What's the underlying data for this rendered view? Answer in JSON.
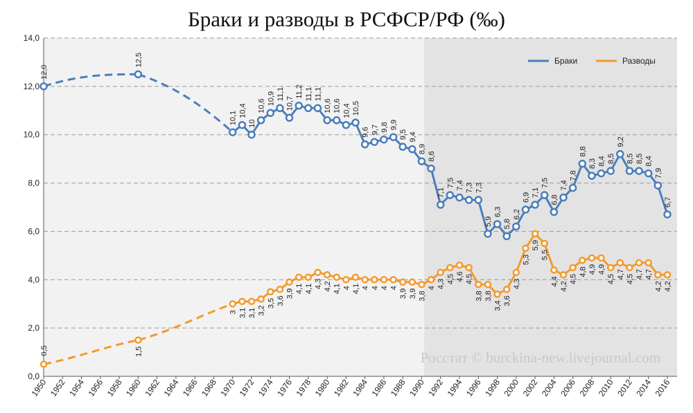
{
  "chart_data": {
    "type": "line",
    "title": "Браки и разводы в РСФСР/РФ (‰)",
    "watermark": "Росстат © burckina-new.livejournal.com",
    "xlim": [
      1950,
      2016
    ],
    "ylim": [
      0,
      14
    ],
    "y_ticks": [
      "0,0",
      "2,0",
      "4,0",
      "6,0",
      "8,0",
      "10,0",
      "12,0",
      "14,0"
    ],
    "x_ticks": [
      "1950",
      "1952",
      "1954",
      "1956",
      "1958",
      "1960",
      "1962",
      "1964",
      "1966",
      "1968",
      "1970",
      "1972",
      "1974",
      "1976",
      "1978",
      "1980",
      "1982",
      "1984",
      "1986",
      "1988",
      "1990",
      "1992",
      "1994",
      "1996",
      "1998",
      "2000",
      "2002",
      "2004",
      "2006",
      "2008",
      "2010",
      "2012",
      "2014",
      "2016"
    ],
    "shaded_from": 1991,
    "grid": "horizontal dashed",
    "legend_position": "top-right",
    "series": [
      {
        "name": "Браки",
        "color": "#4a7ebb",
        "marker": "circle",
        "dashed_segments": [
          [
            1950,
            1960
          ],
          [
            1960,
            1970
          ]
        ],
        "points": [
          {
            "x": 1950,
            "y": 12.0,
            "label": "12,0"
          },
          {
            "x": 1960,
            "y": 12.5,
            "label": "12,5"
          },
          {
            "x": 1970,
            "y": 10.1,
            "label": "10,1"
          },
          {
            "x": 1971,
            "y": 10.4,
            "label": "10,4"
          },
          {
            "x": 1972,
            "y": 10.0,
            "label": "10"
          },
          {
            "x": 1973,
            "y": 10.6,
            "label": "10,6"
          },
          {
            "x": 1974,
            "y": 10.9,
            "label": "10,9"
          },
          {
            "x": 1975,
            "y": 11.1,
            "label": "11,1"
          },
          {
            "x": 1976,
            "y": 10.7,
            "label": "10,7"
          },
          {
            "x": 1977,
            "y": 11.2,
            "label": "11,2"
          },
          {
            "x": 1978,
            "y": 11.1,
            "label": "11,1"
          },
          {
            "x": 1979,
            "y": 11.1,
            "label": "11,1"
          },
          {
            "x": 1980,
            "y": 10.6,
            "label": "10,6"
          },
          {
            "x": 1981,
            "y": 10.6,
            "label": "10,6"
          },
          {
            "x": 1982,
            "y": 10.4,
            "label": "10,4"
          },
          {
            "x": 1983,
            "y": 10.5,
            "label": "10,5"
          },
          {
            "x": 1984,
            "y": 9.6,
            "label": "9,6"
          },
          {
            "x": 1985,
            "y": 9.7,
            "label": "9,7"
          },
          {
            "x": 1986,
            "y": 9.8,
            "label": "9,8"
          },
          {
            "x": 1987,
            "y": 9.9,
            "label": "9,9"
          },
          {
            "x": 1988,
            "y": 9.5,
            "label": "9,5"
          },
          {
            "x": 1989,
            "y": 9.4,
            "label": "9,4"
          },
          {
            "x": 1990,
            "y": 8.9,
            "label": "8,9"
          },
          {
            "x": 1991,
            "y": 8.6,
            "label": "8,6"
          },
          {
            "x": 1992,
            "y": 7.1,
            "label": "7,1"
          },
          {
            "x": 1993,
            "y": 7.5,
            "label": "7,5"
          },
          {
            "x": 1994,
            "y": 7.4,
            "label": "7,4"
          },
          {
            "x": 1995,
            "y": 7.3,
            "label": "7,3"
          },
          {
            "x": 1996,
            "y": 7.3,
            "label": "7,3"
          },
          {
            "x": 1997,
            "y": 5.9,
            "label": "5,9"
          },
          {
            "x": 1998,
            "y": 6.3,
            "label": "6,3"
          },
          {
            "x": 1999,
            "y": 5.8,
            "label": "5,8"
          },
          {
            "x": 2000,
            "y": 6.2,
            "label": "6,2"
          },
          {
            "x": 2001,
            "y": 6.9,
            "label": "6,9"
          },
          {
            "x": 2002,
            "y": 7.1,
            "label": "7,1"
          },
          {
            "x": 2003,
            "y": 7.5,
            "label": "7,5"
          },
          {
            "x": 2004,
            "y": 6.8,
            "label": "6,8"
          },
          {
            "x": 2005,
            "y": 7.4,
            "label": "7,4"
          },
          {
            "x": 2006,
            "y": 7.8,
            "label": "7,8"
          },
          {
            "x": 2007,
            "y": 8.8,
            "label": "8,8"
          },
          {
            "x": 2008,
            "y": 8.3,
            "label": "8,3"
          },
          {
            "x": 2009,
            "y": 8.4,
            "label": "8,4"
          },
          {
            "x": 2010,
            "y": 8.5,
            "label": "8,5"
          },
          {
            "x": 2011,
            "y": 9.2,
            "label": "9,2"
          },
          {
            "x": 2012,
            "y": 8.5,
            "label": "8,5"
          },
          {
            "x": 2013,
            "y": 8.5,
            "label": "8,5"
          },
          {
            "x": 2014,
            "y": 8.4,
            "label": "8,4"
          },
          {
            "x": 2015,
            "y": 7.9,
            "label": "7,9"
          },
          {
            "x": 2016,
            "y": 6.7,
            "label": "6,7"
          }
        ]
      },
      {
        "name": "Разводы",
        "color": "#f39a2b",
        "marker": "circle",
        "dashed_segments": [
          [
            1950,
            1960
          ],
          [
            1960,
            1970
          ]
        ],
        "points": [
          {
            "x": 1950,
            "y": 0.5,
            "label": "0,5"
          },
          {
            "x": 1960,
            "y": 1.5,
            "label": "1,5"
          },
          {
            "x": 1970,
            "y": 3.0,
            "label": "3"
          },
          {
            "x": 1971,
            "y": 3.1,
            "label": "3,1"
          },
          {
            "x": 1972,
            "y": 3.1,
            "label": "3,1"
          },
          {
            "x": 1973,
            "y": 3.2,
            "label": "3,2"
          },
          {
            "x": 1974,
            "y": 3.5,
            "label": "3,5"
          },
          {
            "x": 1975,
            "y": 3.6,
            "label": "3,6"
          },
          {
            "x": 1976,
            "y": 3.9,
            "label": "3,9"
          },
          {
            "x": 1977,
            "y": 4.1,
            "label": "4,1"
          },
          {
            "x": 1978,
            "y": 4.1,
            "label": "4,1"
          },
          {
            "x": 1979,
            "y": 4.3,
            "label": "4,3"
          },
          {
            "x": 1980,
            "y": 4.2,
            "label": "4,2"
          },
          {
            "x": 1981,
            "y": 4.1,
            "label": "4,1"
          },
          {
            "x": 1982,
            "y": 4.0,
            "label": "4"
          },
          {
            "x": 1983,
            "y": 4.1,
            "label": "4,1"
          },
          {
            "x": 1984,
            "y": 4.0,
            "label": "4"
          },
          {
            "x": 1985,
            "y": 4.0,
            "label": "4"
          },
          {
            "x": 1986,
            "y": 4.0,
            "label": "4"
          },
          {
            "x": 1987,
            "y": 4.0,
            "label": "4"
          },
          {
            "x": 1988,
            "y": 3.9,
            "label": "3,9"
          },
          {
            "x": 1989,
            "y": 3.9,
            "label": "3,9"
          },
          {
            "x": 1990,
            "y": 3.8,
            "label": "3,8"
          },
          {
            "x": 1991,
            "y": 4.0,
            "label": "4"
          },
          {
            "x": 1992,
            "y": 4.3,
            "label": "4,3"
          },
          {
            "x": 1993,
            "y": 4.5,
            "label": "4,5"
          },
          {
            "x": 1994,
            "y": 4.6,
            "label": "4,6"
          },
          {
            "x": 1995,
            "y": 4.5,
            "label": "4,5"
          },
          {
            "x": 1996,
            "y": 3.8,
            "label": "3,8"
          },
          {
            "x": 1997,
            "y": 3.8,
            "label": "3,8"
          },
          {
            "x": 1998,
            "y": 3.4,
            "label": "3,4"
          },
          {
            "x": 1999,
            "y": 3.6,
            "label": "3,6"
          },
          {
            "x": 2000,
            "y": 4.3,
            "label": "4,3"
          },
          {
            "x": 2001,
            "y": 5.3,
            "label": "5,3"
          },
          {
            "x": 2002,
            "y": 5.9,
            "label": "5,9"
          },
          {
            "x": 2003,
            "y": 5.5,
            "label": "5,5"
          },
          {
            "x": 2004,
            "y": 4.4,
            "label": "4,4"
          },
          {
            "x": 2005,
            "y": 4.2,
            "label": "4,2"
          },
          {
            "x": 2006,
            "y": 4.5,
            "label": "4,5"
          },
          {
            "x": 2007,
            "y": 4.8,
            "label": "4,8"
          },
          {
            "x": 2008,
            "y": 4.9,
            "label": "4,9"
          },
          {
            "x": 2009,
            "y": 4.9,
            "label": "4,9"
          },
          {
            "x": 2010,
            "y": 4.5,
            "label": "4,5"
          },
          {
            "x": 2011,
            "y": 4.7,
            "label": "4,7"
          },
          {
            "x": 2012,
            "y": 4.5,
            "label": "4,5"
          },
          {
            "x": 2013,
            "y": 4.7,
            "label": "4,7"
          },
          {
            "x": 2014,
            "y": 4.7,
            "label": "4,7"
          },
          {
            "x": 2015,
            "y": 4.2,
            "label": "4,2"
          },
          {
            "x": 2016,
            "y": 4.2,
            "label": "4,2"
          }
        ]
      }
    ]
  }
}
